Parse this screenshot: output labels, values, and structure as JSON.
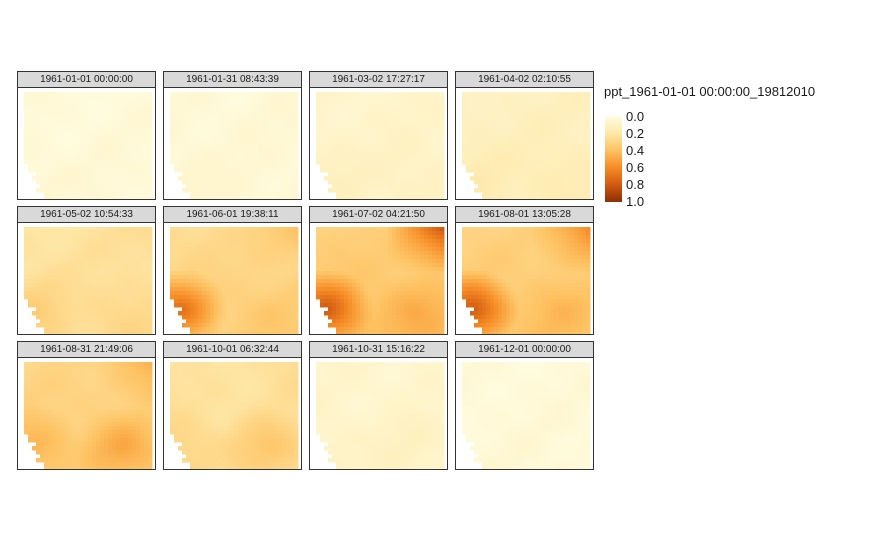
{
  "chart_data": {
    "type": "heatmap",
    "layout": "small-multiples",
    "grid": {
      "rows": 3,
      "cols": 4
    },
    "legend": {
      "title": "ppt_1961-01-01 00:00:00_19812010",
      "ticks": [
        "0.0",
        "0.2",
        "0.4",
        "0.6",
        "0.8",
        "1.0"
      ],
      "range": [
        0,
        1
      ],
      "placement": "right",
      "colors": [
        "#fffde3",
        "#fee8a8",
        "#fec262",
        "#f68b25",
        "#d05a10",
        "#8b2f05"
      ]
    },
    "panels": [
      {
        "label": "1961-01-01 00:00:00",
        "mean": 0.04,
        "gradient": 0.02,
        "northeast": 0.0,
        "southwest": 0.02,
        "southeast": 0.0
      },
      {
        "label": "1961-01-31 08:43:39",
        "mean": 0.05,
        "gradient": 0.02,
        "northeast": 0.0,
        "southwest": 0.02,
        "southeast": 0.0
      },
      {
        "label": "1961-03-02 17:27:17",
        "mean": 0.09,
        "gradient": 0.04,
        "northeast": 0.0,
        "southwest": 0.03,
        "southeast": 0.02
      },
      {
        "label": "1961-04-02 02:10:55",
        "mean": 0.13,
        "gradient": 0.05,
        "northeast": 0.0,
        "southwest": 0.03,
        "southeast": 0.03
      },
      {
        "label": "1961-05-02 10:54:33",
        "mean": 0.24,
        "gradient": 0.07,
        "northeast": 0.03,
        "southwest": 0.08,
        "southeast": 0.04
      },
      {
        "label": "1961-06-01 19:38:11",
        "mean": 0.3,
        "gradient": 0.1,
        "northeast": 0.08,
        "southwest": 0.4,
        "southeast": 0.05
      },
      {
        "label": "1961-07-02 04:21:50",
        "mean": 0.36,
        "gradient": 0.12,
        "northeast": 0.32,
        "southwest": 0.42,
        "southeast": 0.1
      },
      {
        "label": "1961-08-01 13:05:28",
        "mean": 0.34,
        "gradient": 0.1,
        "northeast": 0.2,
        "southwest": 0.46,
        "southeast": 0.08
      },
      {
        "label": "1961-08-31 21:49:06",
        "mean": 0.32,
        "gradient": 0.1,
        "northeast": 0.12,
        "southwest": 0.12,
        "southeast": 0.16
      },
      {
        "label": "1961-10-01 06:32:44",
        "mean": 0.24,
        "gradient": 0.08,
        "northeast": 0.04,
        "southwest": 0.06,
        "southeast": 0.12
      },
      {
        "label": "1961-10-31 15:16:22",
        "mean": 0.08,
        "gradient": 0.03,
        "northeast": 0.0,
        "southwest": 0.02,
        "southeast": 0.03
      },
      {
        "label": "1961-12-01 00:00:00",
        "mean": 0.04,
        "gradient": 0.02,
        "northeast": 0.0,
        "southwest": 0.0,
        "southeast": 0.0
      }
    ]
  }
}
